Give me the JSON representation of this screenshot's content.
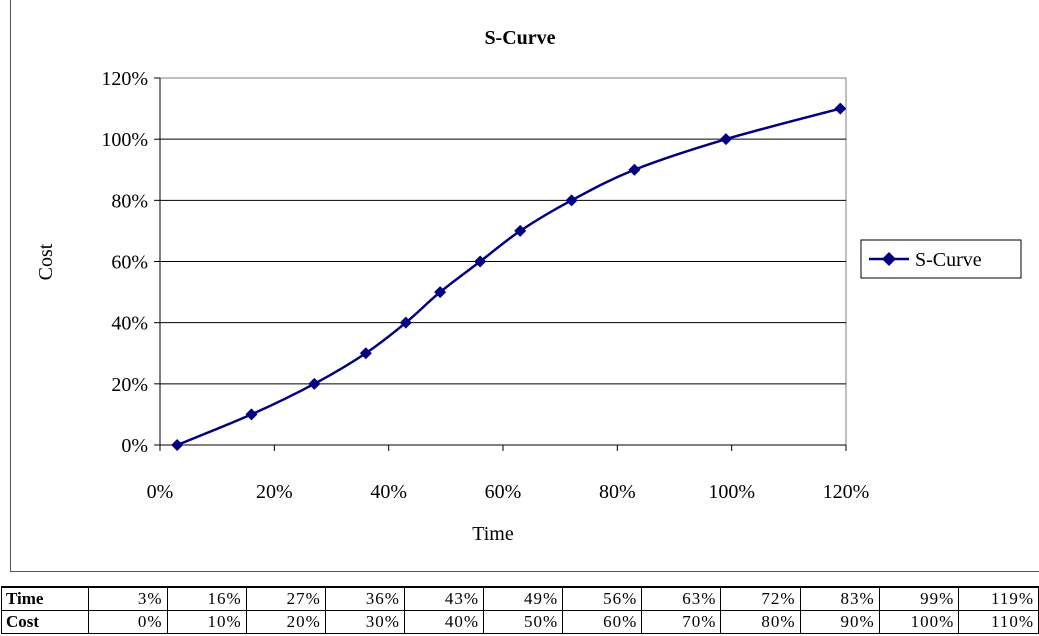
{
  "chart_data": {
    "type": "line",
    "title": "S-Curve",
    "xlabel": "Time",
    "ylabel": "Cost",
    "xlim": [
      0,
      1.2
    ],
    "ylim": [
      0,
      1.2
    ],
    "x_ticks": [
      "0%",
      "20%",
      "40%",
      "60%",
      "80%",
      "100%",
      "120%"
    ],
    "y_ticks": [
      "0%",
      "20%",
      "40%",
      "60%",
      "80%",
      "100%",
      "120%"
    ],
    "grid": "horizontal",
    "legend_position": "right",
    "series": [
      {
        "name": "S-Curve",
        "color": "#000080",
        "marker": "diamond",
        "x": [
          0.03,
          0.16,
          0.27,
          0.36,
          0.43,
          0.49,
          0.56,
          0.63,
          0.72,
          0.83,
          0.99,
          1.19
        ],
        "y": [
          0.0,
          0.1,
          0.2,
          0.3,
          0.4,
          0.5,
          0.6,
          0.7,
          0.8,
          0.9,
          1.0,
          1.1
        ]
      }
    ]
  },
  "table": {
    "rows": [
      {
        "label": "Time",
        "cells": [
          "3%",
          "16%",
          "27%",
          "36%",
          "43%",
          "49%",
          "56%",
          "63%",
          "72%",
          "83%",
          "99%",
          "119%"
        ]
      },
      {
        "label": "Cost",
        "cells": [
          "0%",
          "10%",
          "20%",
          "30%",
          "40%",
          "50%",
          "60%",
          "70%",
          "80%",
          "90%",
          "100%",
          "110%"
        ]
      }
    ]
  }
}
